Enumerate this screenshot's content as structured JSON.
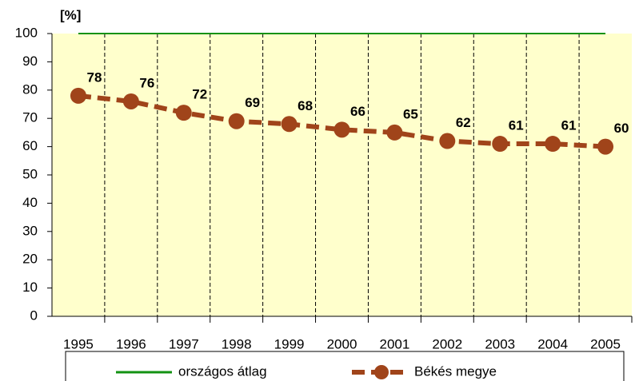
{
  "chart_data": {
    "type": "line",
    "y_label": "[%]",
    "categories": [
      "1995",
      "1996",
      "1997",
      "1998",
      "1999",
      "2000",
      "2001",
      "2002",
      "2003",
      "2004",
      "2005"
    ],
    "series": [
      {
        "name": "országos átlag",
        "color": "#129212",
        "values": [
          100,
          100,
          100,
          100,
          100,
          100,
          100,
          100,
          100,
          100,
          100
        ]
      },
      {
        "name": "Békés megye",
        "color": "#a0441a",
        "values": [
          78,
          76,
          72,
          69,
          68,
          66,
          65,
          62,
          61,
          61,
          60
        ]
      }
    ],
    "ylim": [
      0,
      100
    ],
    "yticks": [
      0,
      10,
      20,
      30,
      40,
      50,
      60,
      70,
      80,
      90,
      100
    ]
  }
}
